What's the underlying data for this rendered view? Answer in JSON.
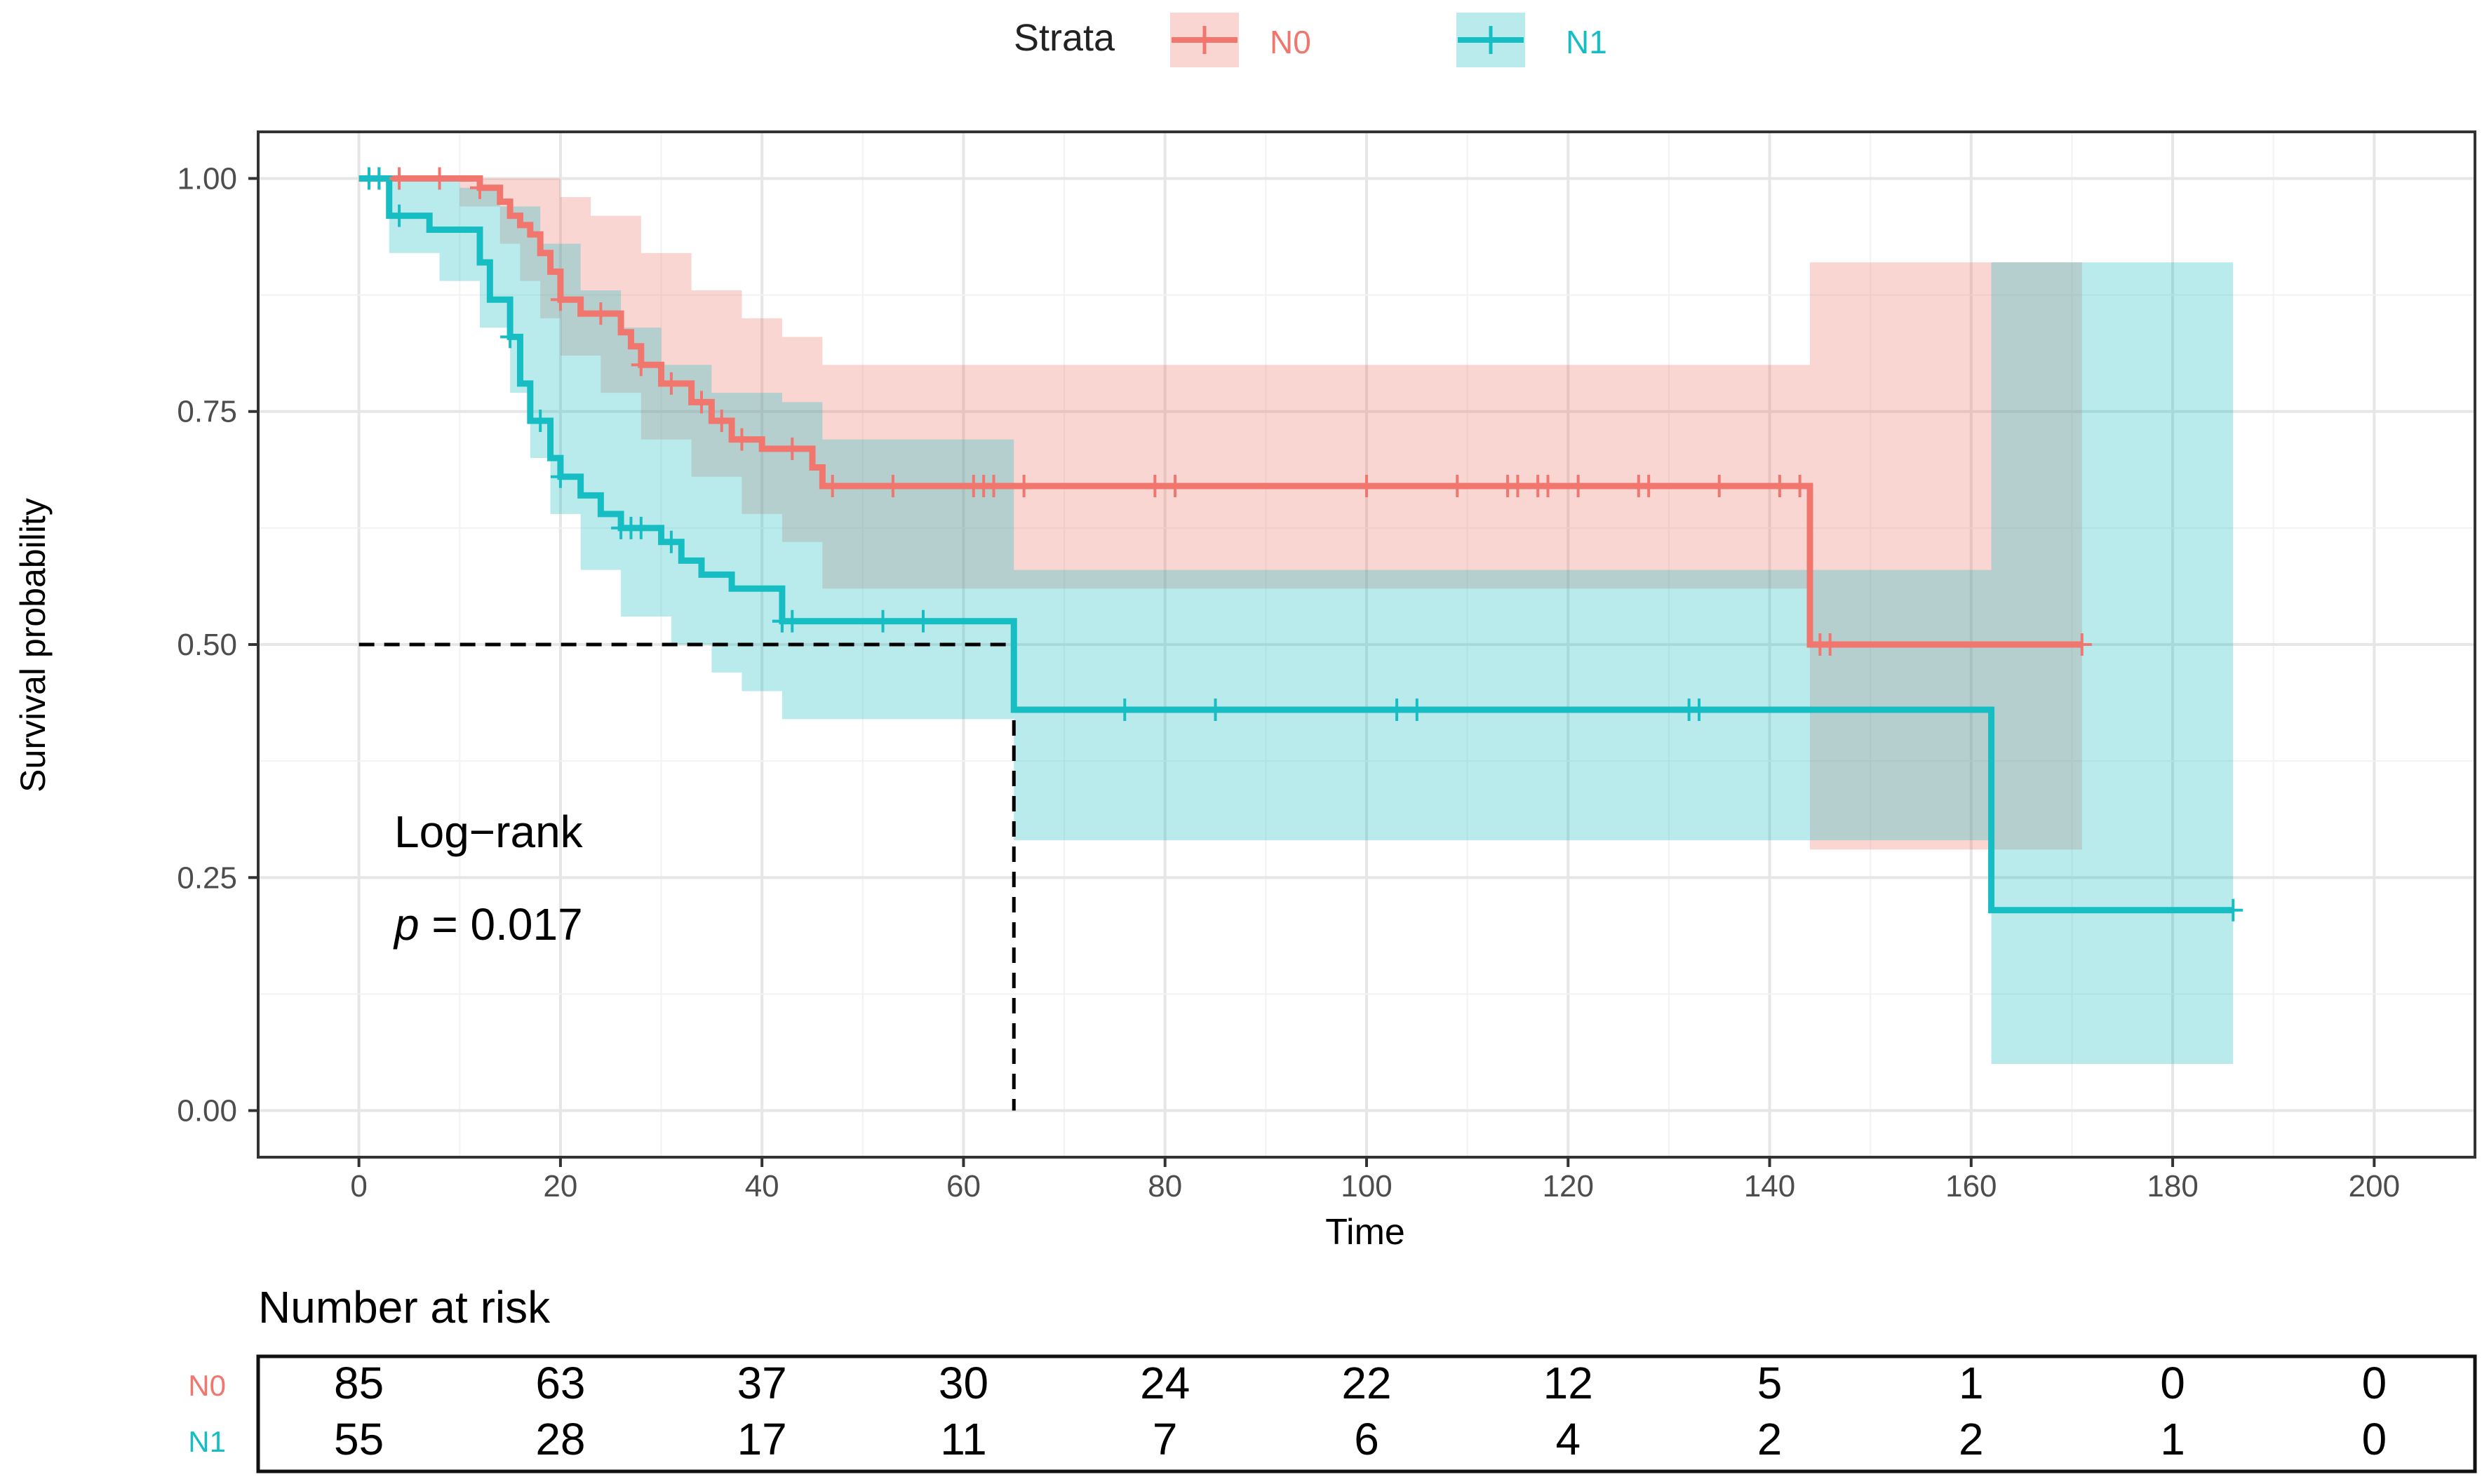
{
  "legend": {
    "title": "Strata",
    "items": [
      {
        "label": "N0",
        "color": "#F0766E"
      },
      {
        "label": "N1",
        "color": "#16BEC4"
      }
    ]
  },
  "chart_data": {
    "type": "line",
    "subtype": "kaplan-meier survival curve with 95% confidence bands",
    "xlabel": "Time",
    "ylabel": "Survival probability",
    "xlim": [
      -10,
      210
    ],
    "ylim": [
      -0.05,
      1.05
    ],
    "x_ticks": [
      0,
      20,
      40,
      60,
      80,
      100,
      120,
      140,
      160,
      180,
      200
    ],
    "y_ticks": [
      0,
      0.25,
      0.5,
      0.75,
      1.0
    ],
    "y_tick_labels": [
      "0.00",
      "0.25",
      "0.50",
      "0.75",
      "1.00"
    ],
    "grid": true,
    "legend_position": "top",
    "series": [
      {
        "name": "N0",
        "color": "#F0766E",
        "steps": [
          [
            0,
            1.0
          ],
          [
            12,
            0.99
          ],
          [
            14,
            0.975
          ],
          [
            15,
            0.96
          ],
          [
            16,
            0.95
          ],
          [
            17,
            0.94
          ],
          [
            18,
            0.92
          ],
          [
            19,
            0.9
          ],
          [
            20,
            0.87
          ],
          [
            22,
            0.855
          ],
          [
            26,
            0.835
          ],
          [
            27,
            0.82
          ],
          [
            28,
            0.8
          ],
          [
            30,
            0.78
          ],
          [
            33,
            0.76
          ],
          [
            35,
            0.74
          ],
          [
            37,
            0.72
          ],
          [
            40,
            0.71
          ],
          [
            45,
            0.69
          ],
          [
            46,
            0.67
          ],
          [
            144,
            0.67
          ],
          [
            144,
            0.5
          ],
          [
            171,
            0.5
          ]
        ],
        "ci_lower": [
          [
            0,
            1.0
          ],
          [
            10,
            0.97
          ],
          [
            14,
            0.93
          ],
          [
            16,
            0.89
          ],
          [
            18,
            0.85
          ],
          [
            20,
            0.81
          ],
          [
            24,
            0.77
          ],
          [
            28,
            0.72
          ],
          [
            33,
            0.68
          ],
          [
            38,
            0.64
          ],
          [
            42,
            0.61
          ],
          [
            46,
            0.56
          ],
          [
            144,
            0.56
          ],
          [
            144,
            0.28
          ],
          [
            162,
            0.28
          ],
          [
            162,
            0.28
          ],
          [
            171,
            0.28
          ]
        ],
        "ci_upper": [
          [
            0,
            1.0
          ],
          [
            16,
            1.0
          ],
          [
            20,
            0.98
          ],
          [
            23,
            0.96
          ],
          [
            28,
            0.92
          ],
          [
            33,
            0.88
          ],
          [
            38,
            0.85
          ],
          [
            42,
            0.83
          ],
          [
            46,
            0.8
          ],
          [
            144,
            0.8
          ],
          [
            144,
            0.91
          ],
          [
            162,
            0.91
          ],
          [
            171,
            0.91
          ]
        ],
        "censor_times": [
          2,
          4,
          8,
          12,
          20,
          24,
          28,
          31,
          34,
          36,
          38,
          43,
          47,
          53,
          61,
          62,
          63,
          66,
          79,
          81,
          100,
          109,
          114,
          115,
          117,
          118,
          121,
          127,
          128,
          135,
          141,
          143,
          145,
          146,
          171
        ]
      },
      {
        "name": "N1",
        "color": "#16BEC4",
        "steps": [
          [
            0,
            1.0
          ],
          [
            3,
            0.96
          ],
          [
            7,
            0.945
          ],
          [
            12,
            0.91
          ],
          [
            13,
            0.87
          ],
          [
            15,
            0.83
          ],
          [
            16,
            0.78
          ],
          [
            17,
            0.74
          ],
          [
            19,
            0.7
          ],
          [
            20,
            0.68
          ],
          [
            22,
            0.66
          ],
          [
            24,
            0.64
          ],
          [
            26,
            0.625
          ],
          [
            30,
            0.61
          ],
          [
            32,
            0.59
          ],
          [
            34,
            0.575
          ],
          [
            37,
            0.56
          ],
          [
            42,
            0.545
          ],
          [
            42,
            0.525
          ],
          [
            65,
            0.525
          ],
          [
            65,
            0.43
          ],
          [
            162,
            0.43
          ],
          [
            162,
            0.215
          ],
          [
            186,
            0.215
          ]
        ],
        "ci_lower": [
          [
            0,
            1.0
          ],
          [
            3,
            0.92
          ],
          [
            8,
            0.89
          ],
          [
            12,
            0.84
          ],
          [
            15,
            0.77
          ],
          [
            17,
            0.7
          ],
          [
            19,
            0.64
          ],
          [
            22,
            0.58
          ],
          [
            26,
            0.53
          ],
          [
            31,
            0.5
          ],
          [
            35,
            0.47
          ],
          [
            38,
            0.45
          ],
          [
            42,
            0.42
          ],
          [
            65,
            0.42
          ],
          [
            65,
            0.29
          ],
          [
            162,
            0.29
          ],
          [
            162,
            0.05
          ],
          [
            186,
            0.05
          ]
        ],
        "ci_upper": [
          [
            0,
            1.0
          ],
          [
            10,
            0.99
          ],
          [
            14,
            0.97
          ],
          [
            18,
            0.93
          ],
          [
            22,
            0.88
          ],
          [
            26,
            0.84
          ],
          [
            30,
            0.8
          ],
          [
            35,
            0.77
          ],
          [
            42,
            0.76
          ],
          [
            46,
            0.72
          ],
          [
            65,
            0.72
          ],
          [
            65,
            0.58
          ],
          [
            162,
            0.58
          ],
          [
            162,
            0.91
          ],
          [
            186,
            0.91
          ]
        ],
        "censor_times": [
          1,
          2,
          4,
          15,
          18,
          20,
          26,
          27,
          28,
          31,
          42,
          42,
          43,
          52,
          56,
          76,
          85,
          103,
          105,
          132,
          133,
          186
        ]
      }
    ],
    "median_reference": {
      "y": 0.5,
      "x": 65
    },
    "annotation": {
      "line1": "Log−rank",
      "p_symbol": "p",
      "p_text": " = 0.017"
    },
    "risk_table": {
      "title": "Number at risk",
      "times": [
        0,
        20,
        40,
        60,
        80,
        100,
        120,
        140,
        160,
        180,
        200
      ],
      "rows": [
        {
          "label": "N0",
          "color": "#F0766E",
          "values": [
            85,
            63,
            37,
            30,
            24,
            22,
            12,
            5,
            1,
            0,
            0
          ]
        },
        {
          "label": "N1",
          "color": "#16BEC4",
          "values": [
            55,
            28,
            17,
            11,
            7,
            6,
            4,
            2,
            2,
            1,
            0
          ]
        }
      ]
    }
  }
}
